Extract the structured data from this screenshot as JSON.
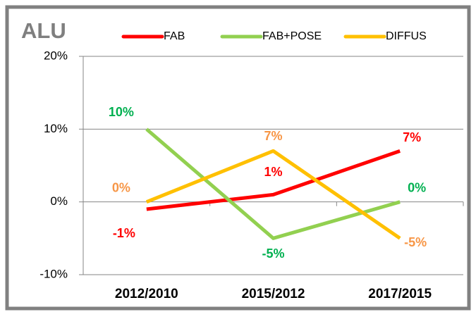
{
  "chart_data": {
    "type": "line",
    "title": "ALU",
    "categories": [
      "2012/2010",
      "2015/2012",
      "2017/2015"
    ],
    "series": [
      {
        "name": "FAB",
        "color": "#ff0000",
        "label_color": "#ff0000",
        "values": [
          -1,
          1,
          7
        ],
        "value_labels": [
          "-1%",
          "1%",
          "7%"
        ]
      },
      {
        "name": "FAB+POSE",
        "color": "#92d050",
        "label_color": "#00b050",
        "values": [
          10,
          -5,
          0
        ],
        "value_labels": [
          "10%",
          "-5%",
          "0%"
        ]
      },
      {
        "name": "DIFFUS",
        "color": "#ffc000",
        "label_color": "#f79646",
        "values": [
          0,
          7,
          -5
        ],
        "value_labels": [
          "0%",
          "7%",
          "-5%"
        ]
      }
    ],
    "ylim": [
      -10,
      20
    ],
    "yticks": [
      {
        "value": -10,
        "label": "-10%"
      },
      {
        "value": 0,
        "label": "0%"
      },
      {
        "value": 10,
        "label": "10%"
      },
      {
        "value": 20,
        "label": "20%"
      }
    ],
    "grid": true,
    "legend": "top"
  }
}
